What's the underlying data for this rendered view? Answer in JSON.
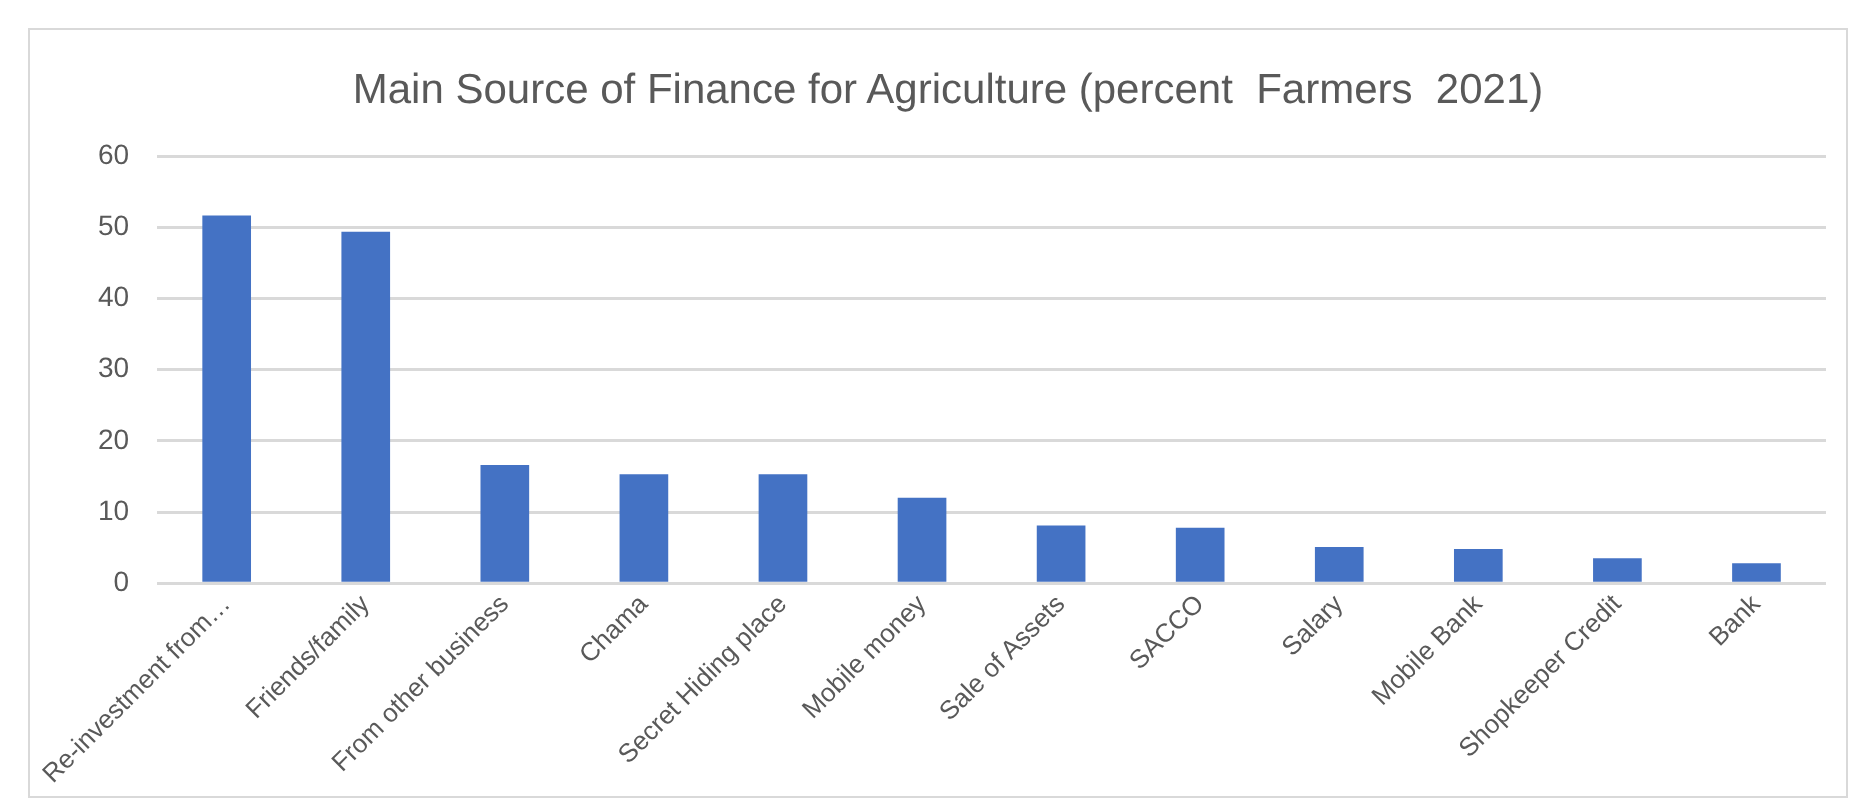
{
  "chart_data": {
    "type": "bar",
    "title": "Main Source of Finance for Agriculture (percent  Farmers  2021)",
    "categories": [
      "Re-investment from…",
      "Friends/family",
      "From other business",
      "Chama",
      "Secret Hiding place",
      "Mobile money",
      "Sale of Assets",
      "SACCO",
      "Salary",
      "Mobile Bank",
      "Shopkeeper Credit",
      "Bank"
    ],
    "values": [
      51.7,
      49.4,
      16.6,
      15.3,
      15.3,
      12,
      8.1,
      7.8,
      5.1,
      4.8,
      3.5,
      2.8
    ],
    "color": "#4472c4",
    "ylim": [
      0,
      60
    ],
    "yticks": [
      0,
      10,
      20,
      30,
      40,
      50,
      60
    ],
    "grid": "y",
    "legend": false
  }
}
